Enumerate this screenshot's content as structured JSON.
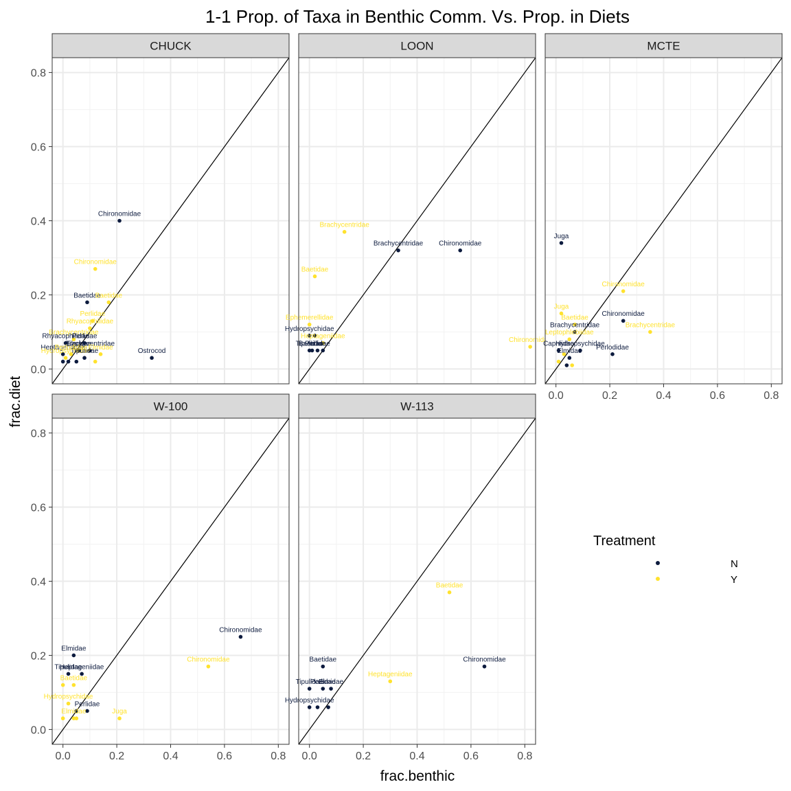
{
  "chart_data": {
    "type": "scatter",
    "title": "1-1 Prop. of Taxa in Benthic Comm. Vs. Prop. in Diets",
    "xlabel": "frac.benthic",
    "ylabel": "frac.diet",
    "xlim": [
      -0.04,
      0.84
    ],
    "ylim": [
      -0.04,
      0.84
    ],
    "x_ticks": [
      "0.0",
      "0.2",
      "0.4",
      "0.6",
      "0.8"
    ],
    "y_ticks": [
      "0.0",
      "0.2",
      "0.4",
      "0.6",
      "0.8"
    ],
    "reference_line": "y = x",
    "grid": true,
    "legend": {
      "title": "Treatment",
      "position": "right",
      "entries": [
        {
          "label": "N",
          "color": "#0d1b3e"
        },
        {
          "label": "Y",
          "color": "#ffe22e"
        }
      ]
    },
    "panels": [
      {
        "name": "CHUCK",
        "points": [
          {
            "x": 0.21,
            "y": 0.4,
            "t": "N",
            "label": "Chironomidae"
          },
          {
            "x": 0.33,
            "y": 0.03,
            "t": "N",
            "label": "Ostrocod"
          },
          {
            "x": 0.09,
            "y": 0.18,
            "t": "N",
            "label": "Baetidae"
          },
          {
            "x": 0.12,
            "y": 0.27,
            "t": "Y",
            "label": "Chironomidae"
          },
          {
            "x": 0.17,
            "y": 0.18,
            "t": "Y",
            "label": "Baetidae"
          },
          {
            "x": 0.11,
            "y": 0.13,
            "t": "Y",
            "label": "Perlidae"
          },
          {
            "x": 0.1,
            "y": 0.11,
            "t": "Y",
            "label": "Rhyacophilidae"
          },
          {
            "x": 0.04,
            "y": 0.08,
            "t": "Y",
            "label": "Brachycentridae"
          },
          {
            "x": 0.01,
            "y": 0.07,
            "t": "N",
            "label": "Rhyacophilidae"
          },
          {
            "x": 0.08,
            "y": 0.07,
            "t": "N",
            "label": "Perlidae"
          },
          {
            "x": 0.1,
            "y": 0.05,
            "t": "N",
            "label": "Brachycentridae"
          },
          {
            "x": 0.0,
            "y": 0.04,
            "t": "N",
            "label": "Heptageniidae"
          },
          {
            "x": 0.06,
            "y": 0.05,
            "t": "N",
            "label": "Elmidae"
          },
          {
            "x": 0.14,
            "y": 0.04,
            "t": "Y",
            "label": "Elmidae"
          },
          {
            "x": 0.01,
            "y": 0.03,
            "t": "Y",
            "label": "Hydropsychidae"
          },
          {
            "x": 0.08,
            "y": 0.03,
            "t": "N",
            "label": "Tipulidae"
          },
          {
            "x": 0.03,
            "y": 0.04,
            "t": "Y",
            "label": "Perlodidae"
          },
          {
            "x": 0.0,
            "y": 0.02,
            "t": "N",
            "label": ""
          },
          {
            "x": 0.02,
            "y": 0.02,
            "t": "N",
            "label": ""
          },
          {
            "x": 0.05,
            "y": 0.02,
            "t": "N",
            "label": ""
          },
          {
            "x": 0.12,
            "y": 0.02,
            "t": "Y",
            "label": ""
          }
        ]
      },
      {
        "name": "LOON",
        "points": [
          {
            "x": 0.13,
            "y": 0.37,
            "t": "Y",
            "label": "Brachycentridae"
          },
          {
            "x": 0.33,
            "y": 0.32,
            "t": "N",
            "label": "Brachycentridae"
          },
          {
            "x": 0.56,
            "y": 0.32,
            "t": "N",
            "label": "Chironomidae"
          },
          {
            "x": 0.02,
            "y": 0.25,
            "t": "Y",
            "label": "Baetidae"
          },
          {
            "x": 0.0,
            "y": 0.12,
            "t": "Y",
            "label": "Ephemerellidae"
          },
          {
            "x": 0.82,
            "y": 0.06,
            "t": "Y",
            "label": "Chironomidae"
          },
          {
            "x": 0.0,
            "y": 0.09,
            "t": "N",
            "label": "Hydropsychidae"
          },
          {
            "x": 0.02,
            "y": 0.09,
            "t": "N",
            "label": ""
          },
          {
            "x": 0.05,
            "y": 0.07,
            "t": "Y",
            "label": "Heptageniidae"
          },
          {
            "x": 0.0,
            "y": 0.05,
            "t": "N",
            "label": "Tipulidae"
          },
          {
            "x": 0.01,
            "y": 0.05,
            "t": "N",
            "label": "Baetidae"
          },
          {
            "x": 0.03,
            "y": 0.05,
            "t": "N",
            "label": "Perlidae"
          },
          {
            "x": 0.05,
            "y": 0.05,
            "t": "N",
            "label": ""
          }
        ]
      },
      {
        "name": "MCTE",
        "points": [
          {
            "x": 0.02,
            "y": 0.34,
            "t": "N",
            "label": "Juga"
          },
          {
            "x": 0.25,
            "y": 0.21,
            "t": "Y",
            "label": "Chironomidae"
          },
          {
            "x": 0.25,
            "y": 0.13,
            "t": "N",
            "label": "Chironomidae"
          },
          {
            "x": 0.35,
            "y": 0.1,
            "t": "Y",
            "label": "Brachycentridae"
          },
          {
            "x": 0.02,
            "y": 0.15,
            "t": "Y",
            "label": "Juga"
          },
          {
            "x": 0.07,
            "y": 0.12,
            "t": "Y",
            "label": "Baetidae"
          },
          {
            "x": 0.07,
            "y": 0.1,
            "t": "N",
            "label": "Brachycentridae"
          },
          {
            "x": 0.05,
            "y": 0.08,
            "t": "Y",
            "label": "Leptophlebiidae"
          },
          {
            "x": 0.21,
            "y": 0.04,
            "t": "N",
            "label": "Perlodidae"
          },
          {
            "x": 0.01,
            "y": 0.05,
            "t": "N",
            "label": "Capniidae"
          },
          {
            "x": 0.09,
            "y": 0.05,
            "t": "N",
            "label": "Hydropsychidae"
          },
          {
            "x": 0.03,
            "y": 0.04,
            "t": "Y",
            "label": ""
          },
          {
            "x": 0.05,
            "y": 0.03,
            "t": "N",
            "label": "Elmidae"
          },
          {
            "x": 0.01,
            "y": 0.02,
            "t": "Y",
            "label": ""
          },
          {
            "x": 0.04,
            "y": 0.01,
            "t": "N",
            "label": ""
          },
          {
            "x": 0.06,
            "y": 0.01,
            "t": "Y",
            "label": ""
          }
        ]
      },
      {
        "name": "W-100",
        "points": [
          {
            "x": 0.66,
            "y": 0.25,
            "t": "N",
            "label": "Chironomidae"
          },
          {
            "x": 0.54,
            "y": 0.17,
            "t": "Y",
            "label": "Chironomidae"
          },
          {
            "x": 0.04,
            "y": 0.2,
            "t": "N",
            "label": "Elmidae"
          },
          {
            "x": 0.02,
            "y": 0.15,
            "t": "N",
            "label": "Tipulidae"
          },
          {
            "x": 0.07,
            "y": 0.15,
            "t": "N",
            "label": "Heptageniidae"
          },
          {
            "x": 0.04,
            "y": 0.12,
            "t": "Y",
            "label": "Baetidae"
          },
          {
            "x": 0.0,
            "y": 0.12,
            "t": "Y",
            "label": ""
          },
          {
            "x": 0.21,
            "y": 0.03,
            "t": "Y",
            "label": "Juga"
          },
          {
            "x": 0.02,
            "y": 0.07,
            "t": "Y",
            "label": "Hydropsychidae"
          },
          {
            "x": 0.09,
            "y": 0.05,
            "t": "N",
            "label": "Perlidae"
          },
          {
            "x": 0.05,
            "y": 0.05,
            "t": "N",
            "label": ""
          },
          {
            "x": 0.0,
            "y": 0.03,
            "t": "Y",
            "label": ""
          },
          {
            "x": 0.04,
            "y": 0.03,
            "t": "Y",
            "label": "Elmidae"
          },
          {
            "x": 0.05,
            "y": 0.03,
            "t": "Y",
            "label": ""
          }
        ]
      },
      {
        "name": "W-113",
        "points": [
          {
            "x": 0.52,
            "y": 0.37,
            "t": "Y",
            "label": "Baetidae"
          },
          {
            "x": 0.65,
            "y": 0.17,
            "t": "N",
            "label": "Chironomidae"
          },
          {
            "x": 0.05,
            "y": 0.17,
            "t": "N",
            "label": "Baetidae"
          },
          {
            "x": 0.3,
            "y": 0.13,
            "t": "Y",
            "label": "Heptageniidae"
          },
          {
            "x": 0.0,
            "y": 0.11,
            "t": "N",
            "label": "Tipulidae"
          },
          {
            "x": 0.05,
            "y": 0.11,
            "t": "N",
            "label": "Perlidae"
          },
          {
            "x": 0.08,
            "y": 0.11,
            "t": "N",
            "label": "Elmidae"
          },
          {
            "x": 0.0,
            "y": 0.06,
            "t": "N",
            "label": "Hydropsychidae"
          },
          {
            "x": 0.03,
            "y": 0.06,
            "t": "N",
            "label": ""
          },
          {
            "x": 0.07,
            "y": 0.06,
            "t": "N",
            "label": ""
          }
        ]
      }
    ]
  }
}
